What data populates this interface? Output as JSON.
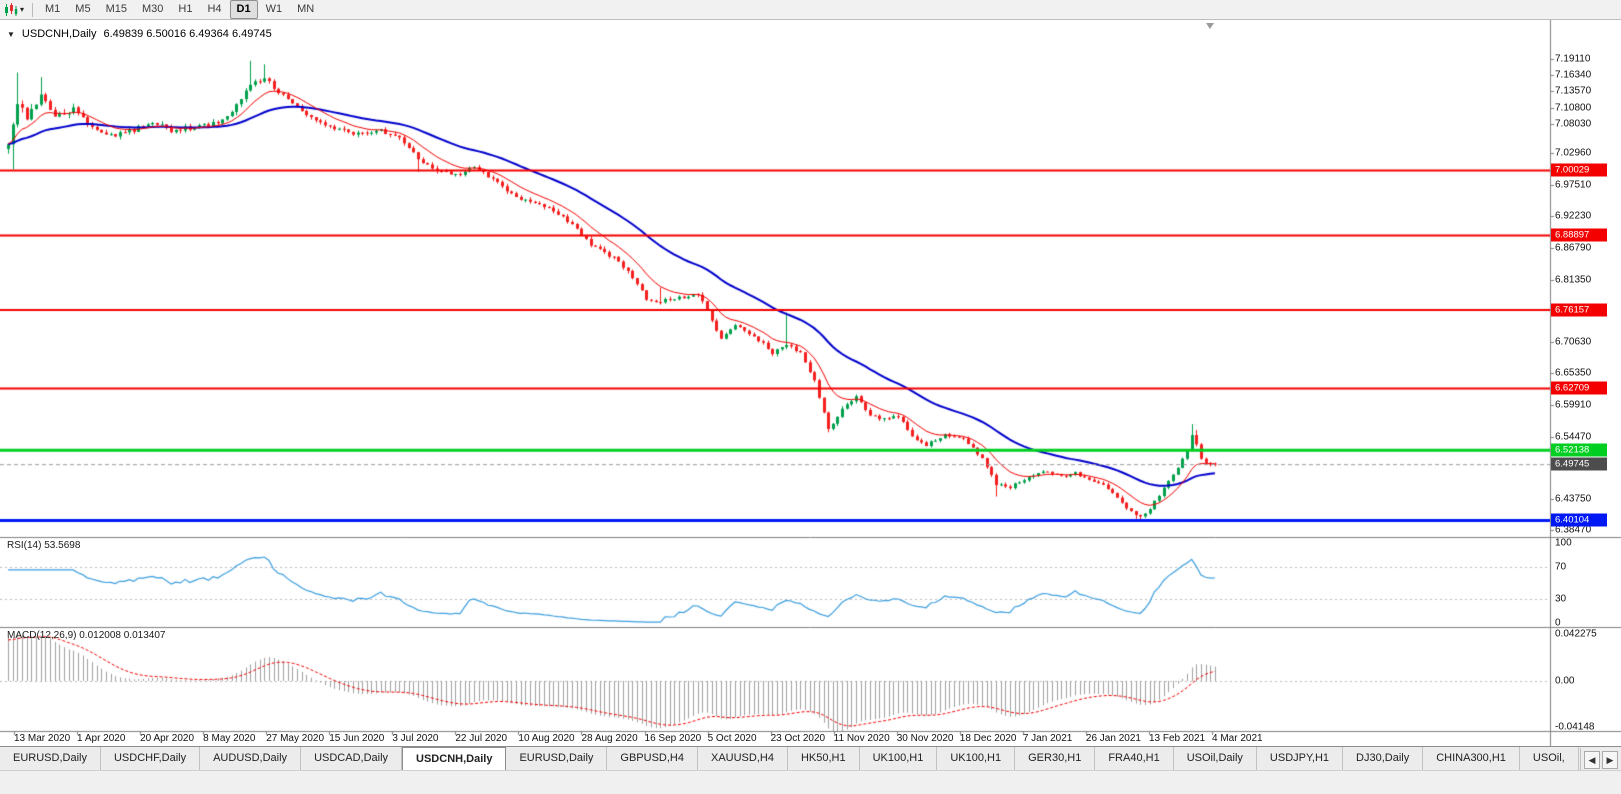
{
  "toolbar": {
    "timeframes": [
      "M1",
      "M5",
      "M15",
      "M30",
      "H1",
      "H4",
      "D1",
      "W1",
      "MN"
    ],
    "active_timeframe": "D1"
  },
  "main_chart": {
    "symbol_title": "USDCNH,Daily",
    "ohlc_text": "6.49839 6.50016 6.49364 6.49745",
    "open": "6.49839",
    "high": "6.50016",
    "low": "6.49364",
    "close": "6.49745",
    "price_axis_labels": [
      "7.19110",
      "7.16340",
      "7.13570",
      "7.10800",
      "7.08030",
      "7.02960",
      "6.97510",
      "6.92230",
      "6.86790",
      "6.81350",
      "6.70630",
      "6.65350",
      "6.59910",
      "6.54470",
      "6.43750",
      "6.38470"
    ],
    "time_axis_labels": [
      "13 Mar 2020",
      "1 Apr 2020",
      "20 Apr 2020",
      "8 May 2020",
      "27 May 2020",
      "15 Jun 2020",
      "3 Jul 2020",
      "22 Jul 2020",
      "10 Aug 2020",
      "28 Aug 2020",
      "16 Sep 2020",
      "5 Oct 2020",
      "23 Oct 2020",
      "11 Nov 2020",
      "30 Nov 2020",
      "18 Dec 2020",
      "7 Jan 2021",
      "26 Jan 2021",
      "13 Feb 2021",
      "4 Mar 2021"
    ],
    "axis_range": {
      "top": 7.1911,
      "bottom": 6.3847
    },
    "hlines": [
      {
        "price": 7.00029,
        "label": "7.00029",
        "color": "#f40000",
        "width": 2
      },
      {
        "price": 6.88897,
        "label": "6.88897",
        "color": "#f40000",
        "width": 2
      },
      {
        "price": 6.76157,
        "label": "6.76157",
        "color": "#f40000",
        "width": 2
      },
      {
        "price": 6.62709,
        "label": "6.62709",
        "color": "#f40000",
        "width": 2
      },
      {
        "price": 6.52138,
        "label": "6.52138",
        "color": "#00cf21",
        "width": 3
      },
      {
        "price": 6.40104,
        "label": "6.40104",
        "color": "#0019f4",
        "width": 3
      }
    ],
    "current_price": {
      "price": 6.49745,
      "label": "6.49745",
      "badge_color": "#4d4d4d"
    },
    "candle_colors": {
      "up": "#00a14b",
      "down": "#f41f1f"
    },
    "ma_lines": [
      {
        "name": "ma-fast",
        "color": "#f40000",
        "period": 10,
        "width": 1
      },
      {
        "name": "ma-slow",
        "color": "#0000cc",
        "period": 34,
        "width": 2
      }
    ],
    "path_keypoints": [
      [
        0,
        7.04
      ],
      [
        2,
        7.115
      ],
      [
        4,
        7.09
      ],
      [
        7,
        7.125
      ],
      [
        10,
        7.095
      ],
      [
        14,
        7.105
      ],
      [
        18,
        7.075
      ],
      [
        22,
        7.06
      ],
      [
        27,
        7.07
      ],
      [
        31,
        7.085
      ],
      [
        35,
        7.068
      ],
      [
        40,
        7.075
      ],
      [
        45,
        7.082
      ],
      [
        49,
        7.11
      ],
      [
        52,
        7.15
      ],
      [
        55,
        7.158
      ],
      [
        58,
        7.135
      ],
      [
        62,
        7.11
      ],
      [
        66,
        7.085
      ],
      [
        70,
        7.072
      ],
      [
        75,
        7.063
      ],
      [
        80,
        7.068
      ],
      [
        84,
        7.055
      ],
      [
        88,
        7.02
      ],
      [
        92,
        7.0
      ],
      [
        96,
        6.992
      ],
      [
        100,
        7.006
      ],
      [
        104,
        6.985
      ],
      [
        108,
        6.96
      ],
      [
        112,
        6.945
      ],
      [
        116,
        6.938
      ],
      [
        120,
        6.915
      ],
      [
        124,
        6.88
      ],
      [
        128,
        6.858
      ],
      [
        131,
        6.846
      ],
      [
        134,
        6.815
      ],
      [
        137,
        6.782
      ],
      [
        140,
        6.776
      ],
      [
        144,
        6.782
      ],
      [
        148,
        6.79
      ],
      [
        151,
        6.745
      ],
      [
        153,
        6.712
      ],
      [
        156,
        6.735
      ],
      [
        160,
        6.718
      ],
      [
        164,
        6.688
      ],
      [
        167,
        6.7
      ],
      [
        170,
        6.69
      ],
      [
        173,
        6.64
      ],
      [
        176,
        6.558
      ],
      [
        179,
        6.59
      ],
      [
        182,
        6.615
      ],
      [
        185,
        6.58
      ],
      [
        188,
        6.575
      ],
      [
        191,
        6.578
      ],
      [
        194,
        6.545
      ],
      [
        197,
        6.53
      ],
      [
        201,
        6.548
      ],
      [
        205,
        6.54
      ],
      [
        209,
        6.508
      ],
      [
        212,
        6.462
      ],
      [
        215,
        6.458
      ],
      [
        218,
        6.472
      ],
      [
        222,
        6.486
      ],
      [
        226,
        6.476
      ],
      [
        229,
        6.482
      ],
      [
        232,
        6.47
      ],
      [
        235,
        6.462
      ],
      [
        238,
        6.44
      ],
      [
        241,
        6.415
      ],
      [
        243,
        6.408
      ],
      [
        245,
        6.422
      ],
      [
        248,
        6.455
      ],
      [
        251,
        6.492
      ],
      [
        253,
        6.52
      ],
      [
        254,
        6.548
      ],
      [
        255,
        6.53
      ],
      [
        256,
        6.505
      ],
      [
        258,
        6.496
      ],
      [
        259,
        6.4975
      ]
    ],
    "spike_highs": [
      [
        2,
        7.168
      ],
      [
        7,
        7.16
      ],
      [
        52,
        7.188
      ],
      [
        55,
        7.182
      ],
      [
        140,
        6.8
      ],
      [
        167,
        6.757
      ],
      [
        254,
        6.566
      ],
      [
        255,
        6.556
      ]
    ],
    "spike_lows": [
      [
        1,
        7.002
      ],
      [
        88,
        6.998
      ],
      [
        176,
        6.552
      ],
      [
        212,
        6.442
      ],
      [
        242,
        6.404
      ],
      [
        243,
        6.4015
      ]
    ]
  },
  "rsi": {
    "label": "RSI(14) 53.5698",
    "current_value": "53.5698",
    "period": 14,
    "axis_labels": [
      "100",
      "70",
      "30",
      "0"
    ],
    "levels": [
      70,
      30
    ],
    "line_color": "#3d9fdf"
  },
  "macd": {
    "label": "MACD(12,26,9) 0.012008 0.013407",
    "macd_value": "0.012008",
    "signal_value": "0.013407",
    "axis_labels": [
      "0.042275",
      "0.00",
      "-0.04148"
    ],
    "axis_top": 0.042275,
    "axis_bottom": -0.04148,
    "histogram_color": "#9f9f9f",
    "signal_color": "#f40000"
  },
  "tabs": {
    "items": [
      "EURUSD,Daily",
      "USDCHF,Daily",
      "AUDUSD,Daily",
      "USDCAD,Daily",
      "USDCNH,Daily",
      "EURUSD,Daily",
      "GBPUSD,H4",
      "XAUUSD,H4",
      "HK50,H1",
      "UK100,H1",
      "UK100,H1",
      "GER30,H1",
      "FRA40,H1",
      "USOil,Daily",
      "USDJPY,H1",
      "DJ30,Daily",
      "CHINA300,H1",
      "USOil,"
    ],
    "active_index": 4,
    "scroll_left": "◀",
    "scroll_right": "▶"
  }
}
